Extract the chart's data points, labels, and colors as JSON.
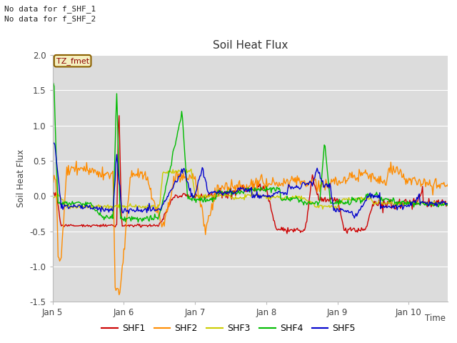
{
  "title": "Soil Heat Flux",
  "ylabel": "Soil Heat Flux",
  "xlabel": "Time",
  "annotation_lines": [
    "No data for f_SHF_1",
    "No data for f_SHF_2"
  ],
  "legend_label": "TZ_fmet",
  "ylim": [
    -1.5,
    2.0
  ],
  "yticks": [
    -1.5,
    -1.0,
    -0.5,
    0.0,
    0.5,
    1.0,
    1.5,
    2.0
  ],
  "xlim": [
    5.0,
    10.55
  ],
  "xticks": [
    5,
    6,
    7,
    8,
    9,
    10
  ],
  "xtick_labels": [
    "Jan 5",
    "Jan 6",
    "Jan 7",
    "Jan 8",
    "Jan 9",
    "Jan 10"
  ],
  "series_colors": {
    "SHF1": "#cc0000",
    "SHF2": "#ff8c00",
    "SHF3": "#cccc00",
    "SHF4": "#00bb00",
    "SHF5": "#0000cc"
  },
  "legend_entries": [
    "SHF1",
    "SHF2",
    "SHF3",
    "SHF4",
    "SHF5"
  ],
  "bg_color": "#dcdcdc",
  "fig_bg_color": "#ffffff",
  "grid_color": "#ffffff",
  "linewidth": 1.0
}
